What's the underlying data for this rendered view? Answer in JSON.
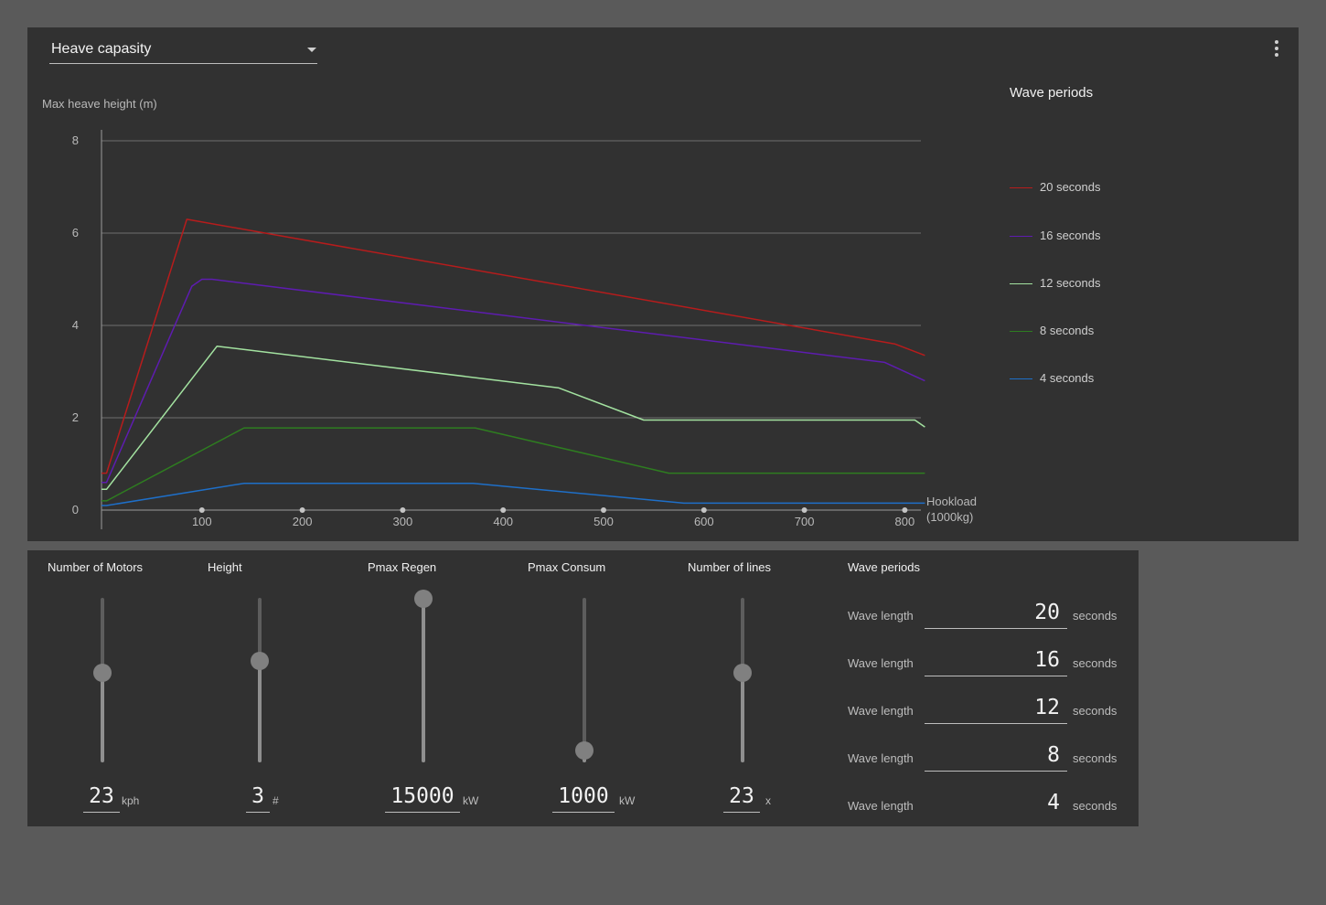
{
  "dropdown": {
    "selected": "Heave capasity"
  },
  "chart_data": {
    "type": "line",
    "ylabel": "Max heave height (m)",
    "xlabel": "Hookload (1000kg)",
    "xlabel_line1": "Hookload",
    "xlabel_line2": "(1000kg)",
    "xlim": [
      0,
      820
    ],
    "ylim": [
      0,
      8
    ],
    "y_ticks": [
      0,
      2,
      4,
      6,
      8
    ],
    "x_ticks": [
      100,
      200,
      300,
      400,
      500,
      600,
      700,
      800
    ],
    "grid": true,
    "legend_title": "Wave periods",
    "legend_position": "right",
    "series": [
      {
        "name": "20 seconds",
        "color": "#b71c1c",
        "points": [
          [
            0,
            0.8
          ],
          [
            5,
            0.8
          ],
          [
            85,
            6.3
          ],
          [
            790,
            3.6
          ],
          [
            820,
            3.35
          ]
        ]
      },
      {
        "name": "16 seconds",
        "color": "#5e1cb0",
        "points": [
          [
            0,
            0.6
          ],
          [
            5,
            0.6
          ],
          [
            90,
            4.85
          ],
          [
            100,
            5.0
          ],
          [
            110,
            5.0
          ],
          [
            780,
            3.2
          ],
          [
            820,
            2.8
          ]
        ]
      },
      {
        "name": "12 seconds",
        "color": "#a3e2a0",
        "points": [
          [
            0,
            0.45
          ],
          [
            5,
            0.45
          ],
          [
            115,
            3.55
          ],
          [
            455,
            2.65
          ],
          [
            540,
            1.95
          ],
          [
            810,
            1.95
          ],
          [
            820,
            1.8
          ]
        ]
      },
      {
        "name": "8 seconds",
        "color": "#2e7d20",
        "points": [
          [
            0,
            0.2
          ],
          [
            5,
            0.2
          ],
          [
            142,
            1.78
          ],
          [
            372,
            1.78
          ],
          [
            565,
            0.8
          ],
          [
            820,
            0.8
          ]
        ]
      },
      {
        "name": "4 seconds",
        "color": "#1e6fc8",
        "points": [
          [
            0,
            0.1
          ],
          [
            5,
            0.1
          ],
          [
            142,
            0.58
          ],
          [
            370,
            0.58
          ],
          [
            580,
            0.15
          ],
          [
            820,
            0.15
          ]
        ]
      }
    ]
  },
  "sliders": [
    {
      "title": "Number of Motors",
      "value": "23",
      "unit": "kph",
      "level": 0.55
    },
    {
      "title": "Height",
      "value": "3",
      "unit": "#",
      "level": 0.62
    },
    {
      "title": "Pmax Regen",
      "value": "15000",
      "unit": "kW",
      "level": 1.0
    },
    {
      "title": "Pmax Consum",
      "value": "1000",
      "unit": "kW",
      "level": 0.08
    },
    {
      "title": "Number of lines",
      "value": "23",
      "unit": "x",
      "level": 0.55
    }
  ],
  "wave_periods": {
    "title": "Wave periods",
    "rows": [
      {
        "label": "Wave length",
        "value": "20",
        "unit": "seconds"
      },
      {
        "label": "Wave length",
        "value": "16",
        "unit": "seconds"
      },
      {
        "label": "Wave length",
        "value": "12",
        "unit": "seconds"
      },
      {
        "label": "Wave length",
        "value": "8",
        "unit": "seconds"
      },
      {
        "label": "Wave length",
        "value": "4",
        "unit": "seconds"
      }
    ]
  }
}
